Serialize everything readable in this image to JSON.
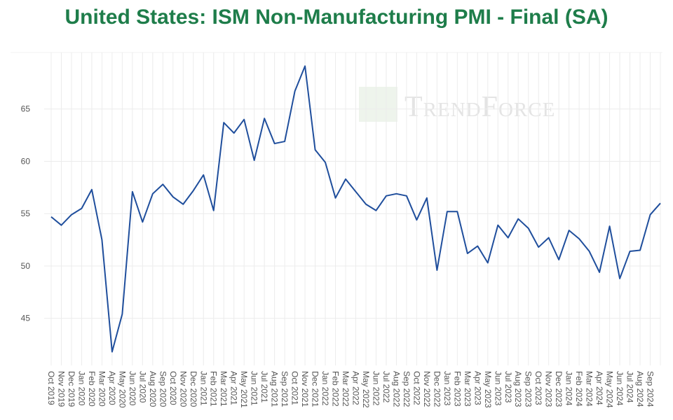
{
  "chart_data": {
    "type": "line",
    "title": "United States: ISM Non-Manufacturing PMI - Final (SA)",
    "watermark": "TrendForce",
    "categories": [
      "Oct 2019",
      "Nov 2019",
      "Dec 2019",
      "Jan 2020",
      "Feb 2020",
      "Mar 2020",
      "Apr 2020",
      "May 2020",
      "Jun 2020",
      "Jul 2020",
      "Aug 2020",
      "Sep 2020",
      "Oct 2020",
      "Nov 2020",
      "Dec 2020",
      "Jan 2021",
      "Feb 2021",
      "Mar 2021",
      "Apr 2021",
      "May 2021",
      "Jun 2021",
      "Jul 2021",
      "Aug 2021",
      "Sep 2021",
      "Oct 2021",
      "Nov 2021",
      "Dec 2021",
      "Jan 2022",
      "Feb 2022",
      "Mar 2022",
      "Apr 2022",
      "May 2022",
      "Jun 2022",
      "Jul 2022",
      "Aug 2022",
      "Sep 2022",
      "Oct 2022",
      "Nov 2022",
      "Dec 2022",
      "Jan 2023",
      "Feb 2023",
      "Mar 2023",
      "Apr 2023",
      "May 2023",
      "Jun 2023",
      "Jul 2023",
      "Aug 2023",
      "Sep 2023",
      "Oct 2023",
      "Nov 2023",
      "Dec 2023",
      "Jan 2024",
      "Feb 2024",
      "Mar 2024",
      "Apr 2024",
      "May 2024",
      "Jun 2024",
      "Jul 2024",
      "Aug 2024",
      "Sep 2024",
      null
    ],
    "series": [
      {
        "name": "ISM Non-Manufacturing PMI",
        "color": "#1f4e9c",
        "values": [
          54.7,
          53.9,
          54.9,
          55.5,
          57.3,
          52.5,
          41.8,
          45.4,
          57.1,
          54.2,
          56.9,
          57.8,
          56.6,
          55.9,
          57.2,
          58.7,
          55.3,
          63.7,
          62.7,
          64.0,
          60.1,
          64.1,
          61.7,
          61.9,
          66.7,
          69.1,
          61.1,
          59.9,
          56.5,
          58.3,
          57.1,
          55.9,
          55.3,
          56.7,
          56.9,
          56.7,
          54.4,
          56.5,
          49.6,
          55.2,
          55.2,
          51.2,
          51.9,
          50.3,
          53.9,
          52.7,
          54.5,
          53.6,
          51.8,
          52.7,
          50.6,
          53.4,
          52.6,
          51.4,
          49.4,
          53.8,
          48.8,
          51.4,
          51.5,
          54.9,
          56.0
        ]
      }
    ],
    "ylim": [
      40.5,
      70.4
    ],
    "yticks": [
      45,
      50,
      55,
      60,
      65
    ],
    "grid": true,
    "legend": false
  }
}
